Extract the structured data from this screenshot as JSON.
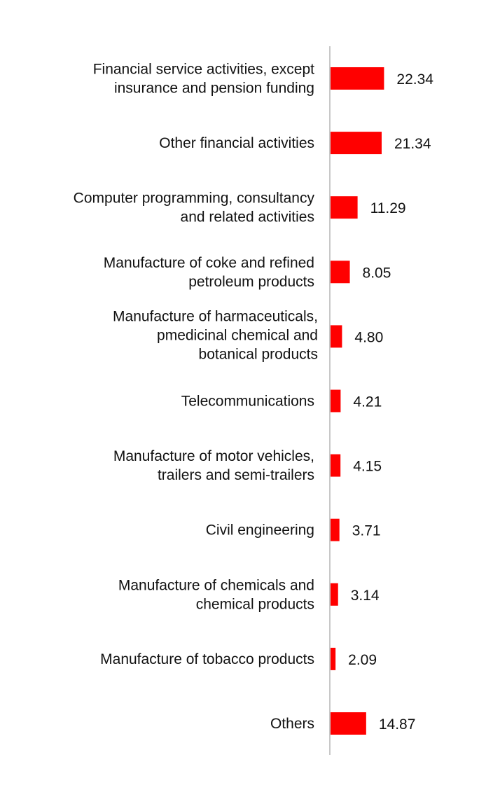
{
  "chart_data": {
    "type": "bar",
    "orientation": "horizontal",
    "title": "",
    "xlabel": "",
    "ylabel": "",
    "grid": false,
    "legend": "none",
    "bar_color": "#ff0000",
    "axis_color": "#c8c8c8",
    "categories": [
      [
        "Financial service activities, except",
        "insurance and pension funding"
      ],
      [
        "Other financial activities"
      ],
      [
        "Computer programming, consultancy",
        "and related activities"
      ],
      [
        "Manufacture of coke and refined",
        "petroleum products"
      ],
      [
        "Manufacture of harmaceuticals,",
        "pmedicinal chemical and",
        "botanical products"
      ],
      [
        "Telecommunications"
      ],
      [
        "Manufacture of motor vehicles,",
        "trailers and semi-trailers"
      ],
      [
        "Civil engineering"
      ],
      [
        "Manufacture of chemicals and",
        "chemical products"
      ],
      [
        "Manufacture of tobacco products"
      ],
      [
        "Others"
      ]
    ],
    "values": [
      22.34,
      21.34,
      11.29,
      8.05,
      4.8,
      4.21,
      4.15,
      3.71,
      3.14,
      2.09,
      14.87
    ],
    "value_labels": [
      "22.34",
      "21.34",
      "11.29",
      "8.05",
      "4.80",
      "4.21",
      "4.15",
      "3.71",
      "3.14",
      "2.09",
      "14.87"
    ]
  }
}
